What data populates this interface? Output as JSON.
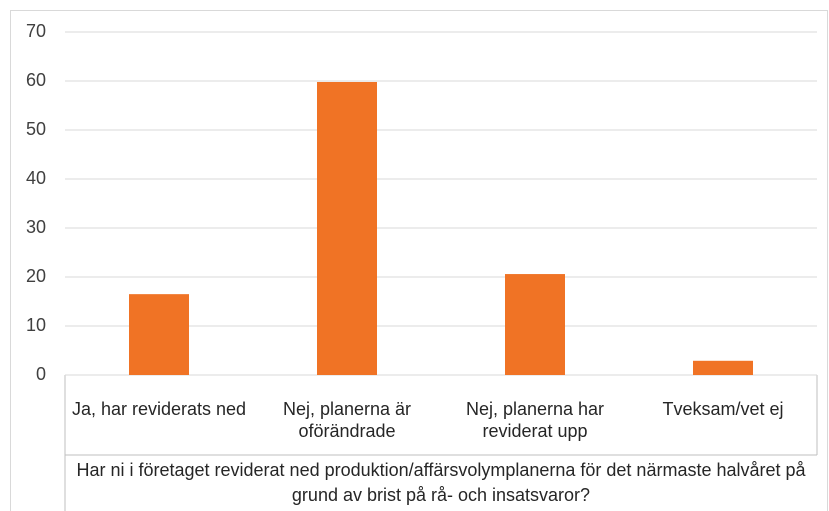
{
  "chart_data": {
    "type": "bar",
    "x_label": "Har ni i företaget reviderat ned produktion/affärsvolymplanerna för det närmaste halvåret på grund av brist på rå- och insatsvaror?",
    "categories": [
      "Ja, har reviderats ned",
      "Nej, planerna är oförändrade",
      "Nej, planerna har reviderat upp",
      "Tveksam/vet ej"
    ],
    "values": [
      16.5,
      59.8,
      20.6,
      2.9
    ],
    "color": "#f07325",
    "ylim": [
      0,
      70
    ],
    "yticks": [
      0,
      10,
      20,
      30,
      40,
      50,
      60,
      70
    ],
    "grid": true
  }
}
